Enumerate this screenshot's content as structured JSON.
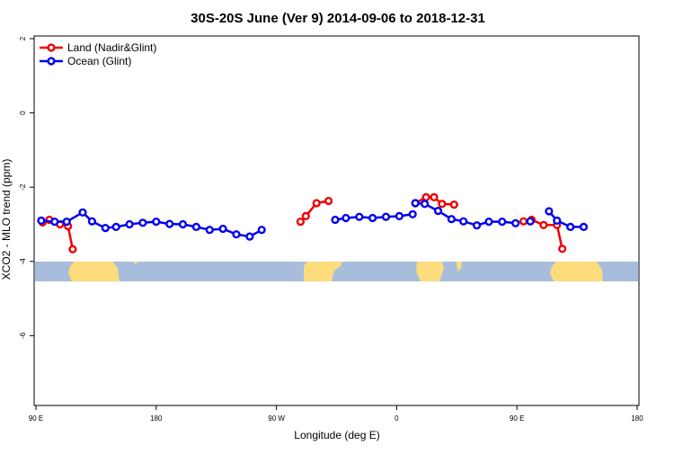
{
  "chart_data": {
    "type": "line",
    "title": "30S-20S June (Ver 9)   2014-09-06 to 2018-12-31",
    "xlabel": "Longitude (deg E)",
    "ylabel": "XCO2 - MLO trend (ppm)",
    "x_domain": [
      90,
      540
    ],
    "ylim": [
      -8,
      2.2
    ],
    "x_ticks": [
      {
        "value": 90,
        "label": "90 E"
      },
      {
        "value": 180,
        "label": "180"
      },
      {
        "value": 270,
        "label": "90 W"
      },
      {
        "value": 360,
        "label": "0"
      },
      {
        "value": 450,
        "label": "90 E"
      },
      {
        "value": 540,
        "label": "180"
      }
    ],
    "y_ticks": [
      {
        "value": 2,
        "label": "2"
      },
      {
        "value": 0,
        "label": "0"
      },
      {
        "value": -2,
        "label": "-2"
      },
      {
        "value": -4,
        "label": "-4"
      },
      {
        "value": -6,
        "label": "-6"
      }
    ],
    "legend": {
      "position": "top-left"
    },
    "series": [
      {
        "name": "Land (Nadir&Glint)",
        "color": "#ee0000",
        "segments": [
          [
            [
              117.5,
              -3.67
            ],
            [
              114,
              -3.05
            ],
            [
              108,
              -3.0
            ],
            [
              100,
              -2.88
            ],
            [
              95,
              -2.95
            ]
          ],
          [
            [
              288,
              -2.93
            ],
            [
              292,
              -2.78
            ],
            [
              300,
              -2.43
            ],
            [
              309,
              -2.37
            ]
          ],
          [
            [
              374,
              -2.43
            ],
            [
              382,
              -2.27
            ],
            [
              388,
              -2.27
            ],
            [
              394,
              -2.45
            ],
            [
              403,
              -2.47
            ]
          ],
          [
            [
              455,
              -2.92
            ],
            [
              461,
              -2.88
            ],
            [
              470,
              -3.02
            ],
            [
              480,
              -3.02
            ],
            [
              484,
              -3.66
            ]
          ]
        ]
      },
      {
        "name": "Ocean (Glint)",
        "color": "#0000ee",
        "segments": [
          [
            [
              94,
              -2.9
            ],
            [
              104,
              -2.93
            ],
            [
              113,
              -2.93
            ],
            [
              125,
              -2.68
            ],
            [
              132,
              -2.92
            ],
            [
              142,
              -3.1
            ],
            [
              150,
              -3.07
            ],
            [
              160,
              -3.0
            ],
            [
              170,
              -2.96
            ],
            [
              180,
              -2.93
            ],
            [
              190,
              -2.99
            ],
            [
              200,
              -3.0
            ],
            [
              210,
              -3.07
            ],
            [
              220,
              -3.15
            ],
            [
              230,
              -3.12
            ],
            [
              240,
              -3.27
            ],
            [
              250,
              -3.33
            ],
            [
              259,
              -3.15
            ]
          ],
          [
            [
              314,
              -2.88
            ],
            [
              322,
              -2.83
            ],
            [
              332,
              -2.8
            ],
            [
              342,
              -2.83
            ],
            [
              352,
              -2.8
            ],
            [
              362,
              -2.78
            ],
            [
              372,
              -2.73
            ]
          ],
          [
            [
              374,
              -2.43
            ],
            [
              381,
              -2.45
            ],
            [
              391,
              -2.64
            ],
            [
              401,
              -2.86
            ],
            [
              410,
              -2.92
            ],
            [
              420,
              -3.03
            ],
            [
              429,
              -2.93
            ],
            [
              439,
              -2.93
            ],
            [
              449,
              -2.97
            ]
          ],
          [
            [
              460,
              -2.92
            ]
          ],
          [
            [
              474,
              -2.65
            ],
            [
              480,
              -2.9
            ],
            [
              490,
              -3.07
            ],
            [
              500,
              -3.07
            ]
          ]
        ]
      }
    ],
    "map_strip": {
      "colors": {
        "ocean": "#a7bddb",
        "land": "#fcdc7c"
      }
    }
  }
}
